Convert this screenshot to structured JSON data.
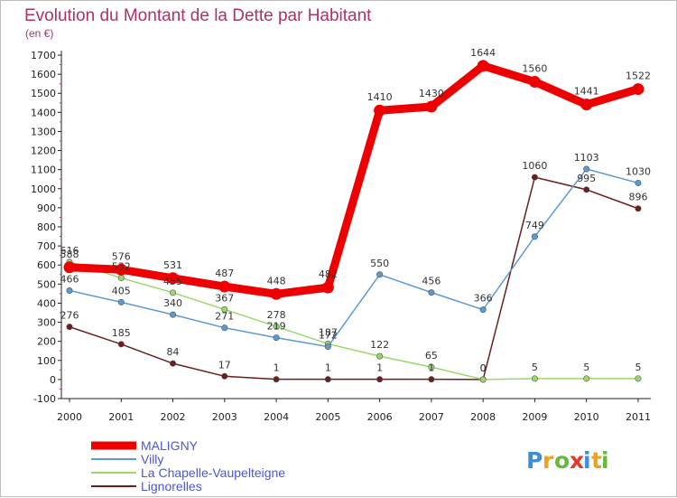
{
  "title": "Evolution du Montant de la Dette par Habitant",
  "subtitle": "(en €)",
  "logo": {
    "letters": [
      "P",
      "r",
      "o",
      "x",
      "i",
      "t",
      "i"
    ],
    "colors": [
      "#3a8fd8",
      "#f0a020",
      "#66b93a",
      "#e03a2a",
      "#3a8fd8",
      "#f0a020",
      "#66b93a"
    ]
  },
  "chart_data": {
    "type": "line",
    "title": "Evolution du Montant de la Dette par Habitant",
    "subtitle": "(en €)",
    "x": [
      "2000",
      "2001",
      "2002",
      "2003",
      "2004",
      "2005",
      "2006",
      "2007",
      "2008",
      "2009",
      "2010",
      "2011"
    ],
    "yticks": [
      "-100",
      "0",
      "100",
      "200",
      "300",
      "400",
      "500",
      "600",
      "700",
      "800",
      "900",
      "1000",
      "1100",
      "1200",
      "1300",
      "1400",
      "1500",
      "1600",
      "1700"
    ],
    "ylim": [
      -100,
      1700
    ],
    "grid": false,
    "legend_position": "bottom-left",
    "series": [
      {
        "name": "Lignorelles",
        "color": "#6b1e1e",
        "values": [
          276,
          185,
          84,
          17,
          1,
          1,
          1,
          1,
          0,
          1060,
          995,
          896
        ],
        "labels": [
          "276",
          "185",
          "84",
          "17",
          "1",
          "1",
          "1",
          "1",
          "0",
          "1060",
          "995",
          "896"
        ]
      },
      {
        "name": "La Chapelle-Vaupelteigne",
        "color": "#9ad86a",
        "values": [
          616,
          532,
          455,
          367,
          278,
          187,
          122,
          65,
          0,
          5,
          5,
          5
        ],
        "labels": [
          "616",
          "532",
          "455",
          "367",
          "278",
          "187",
          "122",
          "65",
          "0",
          "5",
          "5",
          "5"
        ]
      },
      {
        "name": "Villy",
        "color": "#5b9bd3",
        "values": [
          466,
          405,
          340,
          271,
          219,
          172,
          550,
          456,
          366,
          749,
          1103,
          1030
        ],
        "labels": [
          "466",
          "405",
          "340",
          "271",
          "219",
          "172",
          "550",
          "456",
          "366",
          "749",
          "1103",
          "1030"
        ]
      },
      {
        "name": "MALIGNY",
        "color": "#ee0000",
        "values": [
          588,
          576,
          531,
          487,
          448,
          482,
          1410,
          1430,
          1644,
          1560,
          1441,
          1522
        ],
        "labels": [
          "588",
          "576",
          "531",
          "487",
          "448",
          "482",
          "1410",
          "1430",
          "1644",
          "1560",
          "1441",
          "1522"
        ]
      }
    ],
    "legend": [
      "MALIGNY",
      "Villy",
      "La Chapelle-Vaupelteigne",
      "Lignorelles"
    ]
  }
}
